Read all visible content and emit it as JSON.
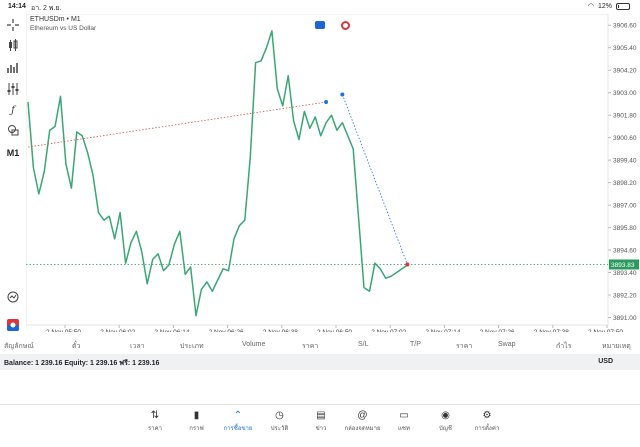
{
  "status": {
    "time": "14:14",
    "date": "อา. 2 พ.ย.",
    "battery": "12%",
    "battery_level": 0.12
  },
  "chart": {
    "symbol": "ETHUSDm • M1",
    "description": "Ethereum vs US Dollar",
    "current_price": "3893.83",
    "price_axis": [
      "3906.60",
      "3905.40",
      "3904.20",
      "3903.00",
      "3901.80",
      "3900.60",
      "3899.40",
      "3898.20",
      "3897.00",
      "3895.80",
      "3894.60",
      "3893.40",
      "3892.20",
      "3891.00"
    ],
    "time_axis": [
      "2 Nov 05:50",
      "2 Nov 06:02",
      "2 Nov 06:14",
      "2 Nov 06:26",
      "2 Nov 06:38",
      "2 Nov 06:50",
      "2 Nov 07:02",
      "2 Nov 07:14",
      "2 Nov 07:26",
      "2 Nov 07:38",
      "2 Nov 07:50"
    ]
  },
  "chart_data": {
    "type": "line",
    "title": "ETHUSDm • M1",
    "subtitle": "Ethereum vs US Dollar",
    "xlabel": "",
    "ylabel": "",
    "ylim": [
      3890.6,
      3907.2
    ],
    "x": [
      "05:50",
      "05:51",
      "05:52",
      "05:53",
      "05:54",
      "05:55",
      "05:56",
      "05:57",
      "05:58",
      "05:59",
      "06:00",
      "06:01",
      "06:02",
      "06:03",
      "06:04",
      "06:05",
      "06:06",
      "06:07",
      "06:08",
      "06:09",
      "06:10",
      "06:11",
      "06:12",
      "06:13",
      "06:14",
      "06:15",
      "06:16",
      "06:17",
      "06:18",
      "06:19",
      "06:20",
      "06:21",
      "06:22",
      "06:23",
      "06:24",
      "06:25",
      "06:26",
      "06:27",
      "06:28",
      "06:29",
      "06:30",
      "06:31",
      "06:32",
      "06:33",
      "06:34",
      "06:35",
      "06:36",
      "06:37",
      "06:38",
      "06:39",
      "06:40",
      "06:41",
      "06:42",
      "06:43",
      "06:44",
      "06:45",
      "06:46",
      "06:47",
      "06:48",
      "06:49",
      "06:50",
      "06:51",
      "06:52",
      "06:53",
      "06:54",
      "06:55",
      "06:56",
      "06:57",
      "06:58",
      "06:59",
      "07:00"
    ],
    "series": [
      {
        "values": [
          3902.5,
          3899.0,
          3897.6,
          3898.8,
          3901.0,
          3901.2,
          3902.8,
          3899.2,
          3897.9,
          3900.9,
          3900.7,
          3899.8,
          3898.6,
          3896.6,
          3896.2,
          3896.4,
          3895.2,
          3896.6,
          3893.9,
          3895.0,
          3895.6,
          3894.5,
          3892.8,
          3894.1,
          3894.4,
          3893.5,
          3893.8,
          3894.9,
          3895.6,
          3893.3,
          3893.7,
          3891.1,
          3892.5,
          3892.9,
          3892.4,
          3893.0,
          3893.6,
          3893.5,
          3895.2,
          3895.9,
          3896.2,
          3899.5,
          3904.6,
          3904.7,
          3905.4,
          3906.3,
          3903.2,
          3902.3,
          3903.9,
          3901.5,
          3900.5,
          3902.0,
          3901.1,
          3901.7,
          3900.7,
          3901.4,
          3901.8,
          3901.0,
          3901.4,
          3900.7,
          3900.0,
          3896.3,
          3892.6,
          3892.4,
          3893.9,
          3893.6,
          3893.1,
          3893.2,
          3893.4,
          3893.6,
          3893.8
        ]
      }
    ],
    "current_price": 3893.83,
    "grid": true
  },
  "left_toolbar": {
    "timeframe_label": "M1"
  },
  "trade_columns": [
    "สัญลักษณ์",
    "ตั๋ว",
    "เวลา",
    "ประเภท",
    "Volume",
    "ราคา",
    "S/L",
    "T/P",
    "ราคา",
    "Swap",
    "กำไร",
    "หมายเหตุ"
  ],
  "balance": {
    "text": "Balance: 1 239.16 Equity: 1 239.16 ฟรี: 1 239.16",
    "currency": "USD"
  },
  "nav": [
    {
      "label": "ราคา",
      "icon": "quotes-icon"
    },
    {
      "label": "กราฟ",
      "icon": "chart-icon"
    },
    {
      "label": "การซื้อขาย",
      "icon": "trade-icon"
    },
    {
      "label": "ประวัติ",
      "icon": "history-icon"
    },
    {
      "label": "ข่าว",
      "icon": "news-icon"
    },
    {
      "label": "กล่องจดหมาย",
      "icon": "mailbox-icon"
    },
    {
      "label": "แชท",
      "icon": "chat-icon"
    },
    {
      "label": "บัญชี",
      "icon": "account-icon"
    },
    {
      "label": "การตั้งค่า",
      "icon": "settings-icon"
    }
  ],
  "colors": {
    "line": "#3aa676",
    "accent": "#1e73d9",
    "price_tag": "#2b9a5e",
    "trend": "#d95050"
  }
}
